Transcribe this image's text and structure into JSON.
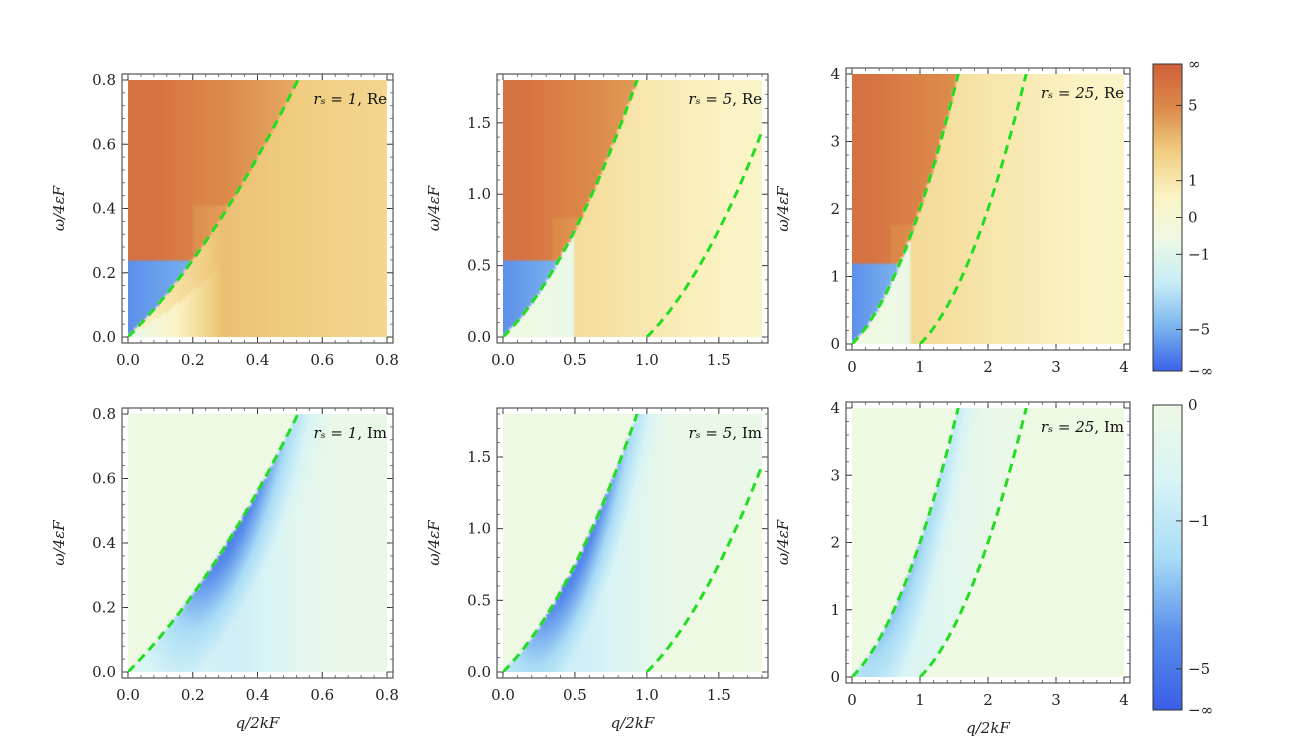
{
  "chart_data": [
    {
      "type": "heatmap",
      "panel": "re-1",
      "annotation": {
        "math": "rₛ = 1",
        "part": ", Re"
      },
      "xlabel": "",
      "ylabel": "ω/4εF",
      "xlim": [
        0,
        0.8
      ],
      "ylim": [
        0,
        0.8
      ],
      "xticks": [
        0,
        0.2,
        0.4,
        0.6,
        0.8
      ],
      "xtick_labels": [
        "0.0",
        "0.2",
        "0.4",
        "0.6",
        "0.8"
      ],
      "yticks": [
        0,
        0.2,
        0.4,
        0.6,
        0.8
      ],
      "ytick_labels": [
        "0.0",
        "0.2",
        "0.4",
        "0.6",
        "0.8"
      ],
      "rs": 1,
      "component": "Re",
      "colorscale": "re",
      "boundaries": [
        {
          "q0": 0,
          "a": 1,
          "b": 0.5
        }
      ]
    },
    {
      "type": "heatmap",
      "panel": "re-5",
      "annotation": {
        "math": "rₛ = 5",
        "part": ", Re"
      },
      "xlabel": "",
      "ylabel": "ω/4εF",
      "xlim": [
        0,
        1.8
      ],
      "ylim": [
        0,
        1.8
      ],
      "xticks": [
        0,
        0.5,
        1.0,
        1.5
      ],
      "xtick_labels": [
        "0.0",
        "0.5",
        "1.0",
        "1.5"
      ],
      "yticks": [
        0,
        0.5,
        1.0,
        1.5
      ],
      "ytick_labels": [
        "0.0",
        "0.5",
        "1.0",
        "1.5"
      ],
      "rs": 5,
      "component": "Re",
      "colorscale": "re",
      "boundaries": [
        {
          "q0": 0,
          "a": 1,
          "b": 0.5
        },
        {
          "q0": 1,
          "a": 1,
          "b": 0.5
        }
      ]
    },
    {
      "type": "heatmap",
      "panel": "re-25",
      "annotation": {
        "math": "rₛ = 25",
        "part": ", Re"
      },
      "xlabel": "",
      "ylabel": "ω/4εF",
      "xlim": [
        0,
        4
      ],
      "ylim": [
        0,
        4
      ],
      "xticks": [
        0,
        1,
        2,
        3,
        4
      ],
      "xtick_labels": [
        "0",
        "1",
        "2",
        "3",
        "4"
      ],
      "yticks": [
        0,
        1,
        2,
        3,
        4
      ],
      "ytick_labels": [
        "0",
        "1",
        "2",
        "3",
        "4"
      ],
      "rs": 25,
      "component": "Re",
      "colorscale": "re",
      "boundaries": [
        {
          "q0": 0,
          "a": 1,
          "b": 0.5
        },
        {
          "q0": 1,
          "a": 1,
          "b": 0.5
        }
      ]
    },
    {
      "type": "heatmap",
      "panel": "im-1",
      "annotation": {
        "math": "rₛ = 1",
        "part": ", Im"
      },
      "xlabel": "q/2kF",
      "ylabel": "ω/4εF",
      "xlim": [
        0,
        0.8
      ],
      "ylim": [
        0,
        0.8
      ],
      "xticks": [
        0,
        0.2,
        0.4,
        0.6,
        0.8
      ],
      "xtick_labels": [
        "0.0",
        "0.2",
        "0.4",
        "0.6",
        "0.8"
      ],
      "yticks": [
        0,
        0.2,
        0.4,
        0.6,
        0.8
      ],
      "ytick_labels": [
        "0.0",
        "0.2",
        "0.4",
        "0.6",
        "0.8"
      ],
      "rs": 1,
      "component": "Im",
      "colorscale": "im",
      "boundaries": [
        {
          "q0": 0,
          "a": 1,
          "b": 0.5
        }
      ]
    },
    {
      "type": "heatmap",
      "panel": "im-5",
      "annotation": {
        "math": "rₛ = 5",
        "part": ", Im"
      },
      "xlabel": "q/2kF",
      "ylabel": "ω/4εF",
      "xlim": [
        0,
        1.8
      ],
      "ylim": [
        0,
        1.8
      ],
      "xticks": [
        0,
        0.5,
        1.0,
        1.5
      ],
      "xtick_labels": [
        "0.0",
        "0.5",
        "1.0",
        "1.5"
      ],
      "yticks": [
        0,
        0.5,
        1.0,
        1.5
      ],
      "ytick_labels": [
        "0.0",
        "0.5",
        "1.0",
        "1.5"
      ],
      "rs": 5,
      "component": "Im",
      "colorscale": "im",
      "boundaries": [
        {
          "q0": 0,
          "a": 1,
          "b": 0.5
        },
        {
          "q0": 1,
          "a": 1,
          "b": 0.5
        }
      ]
    },
    {
      "type": "heatmap",
      "panel": "im-25",
      "annotation": {
        "math": "rₛ = 25",
        "part": ", Im"
      },
      "xlabel": "q/2kF",
      "ylabel": "ω/4εF",
      "xlim": [
        0,
        4
      ],
      "ylim": [
        0,
        4
      ],
      "xticks": [
        0,
        1,
        2,
        3,
        4
      ],
      "xtick_labels": [
        "0",
        "1",
        "2",
        "3",
        "4"
      ],
      "yticks": [
        0,
        1,
        2,
        3,
        4
      ],
      "ytick_labels": [
        "0",
        "1",
        "2",
        "3",
        "4"
      ],
      "rs": 25,
      "component": "Im",
      "colorscale": "im",
      "boundaries": [
        {
          "q0": 0,
          "a": 1,
          "b": 0.5
        },
        {
          "q0": 1,
          "a": 1,
          "b": 0.5
        }
      ]
    }
  ],
  "colorbars": {
    "re": {
      "ticks": [
        "∞",
        "5",
        "1",
        "0",
        "−1",
        "−5",
        "−∞"
      ],
      "stops": [
        "#d0603a",
        "#dc8a4a",
        "#f0cd80",
        "#fbf3c4",
        "#eef9e4",
        "#c6ecf6",
        "#7ab4ee",
        "#3a62e8"
      ]
    },
    "im": {
      "ticks": [
        "0",
        "−1",
        "−5",
        "−∞"
      ],
      "stops": [
        "#eef9e4",
        "#d8f4f6",
        "#a8dcf6",
        "#5a8fec",
        "#3a5ee6"
      ]
    }
  },
  "colors": {
    "boundary_line": "#22dd22",
    "frame": "#333333"
  }
}
